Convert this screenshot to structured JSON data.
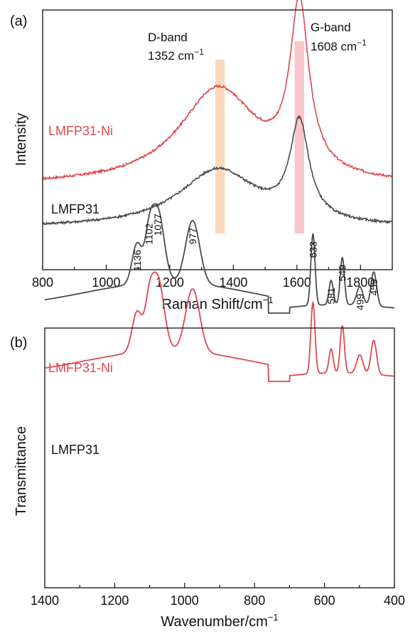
{
  "colors": {
    "red": "#e0474c",
    "dark": "#4a4a4a",
    "band_d": "#fbd9bd",
    "band_g": "#f9c6cc"
  },
  "chart_data": [
    {
      "panel": "(a)",
      "type": "line",
      "xlabel": "Raman Shift/cm",
      "xlabel_sup": "−1",
      "ylabel": "Intensity",
      "xlim": [
        800,
        1900
      ],
      "x_ticks": [
        800,
        1000,
        1200,
        1400,
        1600,
        1800
      ],
      "bands": [
        {
          "name": "D-band",
          "position": 1352,
          "position_text": "1352 cm",
          "unit_sup": "−1",
          "center": 1358,
          "width": 30,
          "color": "band_d"
        },
        {
          "name": "G-band",
          "position": 1608,
          "position_text": "1608 cm",
          "unit_sup": "−1",
          "center": 1608,
          "width": 30,
          "color": "band_g"
        }
      ],
      "series": [
        {
          "name": "LMFP31-Ni",
          "color": "red",
          "baseline": 0.22,
          "d_height": 0.5,
          "g_height": 0.86
        },
        {
          "name": "LMFP31",
          "color": "dark",
          "baseline": 0.0,
          "d_height": 0.3,
          "g_height": 0.5
        }
      ]
    },
    {
      "panel": "(b)",
      "type": "line",
      "xlabel": "Wavenumber/cm",
      "xlabel_sup": "−1",
      "ylabel": "Transmittance",
      "xlim": [
        1400,
        400
      ],
      "x_ticks": [
        1400,
        1200,
        1000,
        800,
        600,
        400
      ],
      "peaks": [
        {
          "x": 1136,
          "label": "1136",
          "depth": 0.28,
          "width": 14
        },
        {
          "x": 1102,
          "label": "1102",
          "depth": 0.26,
          "width": 12
        },
        {
          "x": 1077,
          "label": "1077",
          "depth": 0.5,
          "width": 18
        },
        {
          "x": 977,
          "label": "977",
          "depth": 0.44,
          "width": 20
        },
        {
          "x": 633,
          "label": "633",
          "depth": 0.5,
          "width": 6
        },
        {
          "x": 581,
          "label": "581",
          "depth": 0.17,
          "width": 6
        },
        {
          "x": 549,
          "label": "549",
          "depth": 0.33,
          "width": 6
        },
        {
          "x": 499,
          "label": "499",
          "depth": 0.13,
          "width": 9
        },
        {
          "x": 459,
          "label": "459",
          "depth": 0.24,
          "width": 8
        }
      ],
      "series": [
        {
          "name": "LMFP31-Ni",
          "color": "red",
          "offset": 0.0
        },
        {
          "name": "LMFP31",
          "color": "dark",
          "offset": -0.48
        }
      ]
    }
  ]
}
